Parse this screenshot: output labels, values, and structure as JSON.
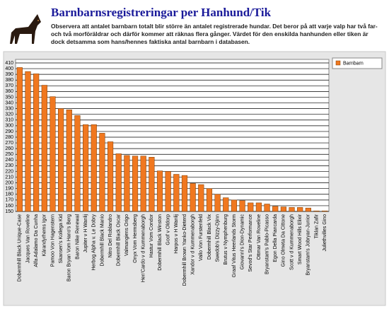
{
  "header": {
    "title": "Barnbarnsregistreringar per Hanhund/Tik",
    "description": "Observera att antalet barnbarn totalt blir större än antalet registrerade hundar. Det beror på att varje valp har två far- och två morföräldrar och därför kommer att räknas flera gånger. Värdet för den enskilda hanhunden eller tiken är dock detsamma som hans/hennes faktiska antal barnbarn i databasen."
  },
  "chart_data": {
    "type": "bar",
    "categories": [
      "Dobermhill Black Unique-Case",
      "Jacques Van Roveline",
      "Alfa Adalamo Da Cunha",
      "Kärandyrhems Igor",
      "Pamoo Von Hagenstern",
      "Skansen's Kollega Kid",
      "Baron Bryan Vom Hano's Berg",
      "Baron Nike Renewal",
      "Jupiter v H Wanlij",
      "Herbog Alpha v. Le Dobry",
      "Dobermhill Black Manio",
      "Nitro Del Roblandro",
      "Dobermhill Black Oscar",
      "Valmangiens Origo",
      "Onyx Vom Hermsberg",
      "Hen'Cardo v d Kummenaborgh",
      "Hastur Vom Condor",
      "Dobermhill Black Winston",
      "Goof v Oldorp",
      "Harpos v H Wanlij",
      "Dobermhill Brown Yanko-Dieterd",
      "Xandor v d Kummenaborgh",
      "Vallo Von Furstenfeld",
      "Dobermhill Black Vix",
      "Swedob's Dizzy-Djinn",
      "Brutus v Nymphenburg",
      "Graaf Vitus Heerlands Storm",
      "Giovanni's Dion-Dynamic",
      "Sevod's Star Performance",
      "Ottmar Van Roveline",
      "Bryanstam's Pablo-Picasso",
      "Egon Della Piancarda",
      "Gino Olmeta Da Cittone",
      "Scott v d Kummenaborgh",
      "Smart Wood Hills Elixir",
      "Bryanstam's Jobryan-Junior",
      "Tiklan Zafir",
      "Juliethvilles Gino"
    ],
    "series": [
      {
        "name": "Barnbarn",
        "color": "#f07820",
        "values": [
          402,
          395,
          391,
          371,
          351,
          330,
          328,
          318,
          302,
          302,
          287,
          272,
          251,
          248,
          247,
          247,
          245,
          221,
          220,
          215,
          213,
          199,
          197,
          190,
          180,
          174,
          170,
          169,
          165,
          165,
          163,
          159,
          158,
          157,
          157,
          156,
          151,
          151
        ]
      }
    ],
    "ylim": [
      150,
      410
    ],
    "yticks": [
      150,
      160,
      170,
      180,
      190,
      200,
      210,
      220,
      230,
      240,
      250,
      260,
      270,
      280,
      290,
      300,
      310,
      320,
      330,
      340,
      350,
      360,
      370,
      380,
      390,
      400,
      410
    ],
    "grid": true,
    "legend": "top-right"
  }
}
